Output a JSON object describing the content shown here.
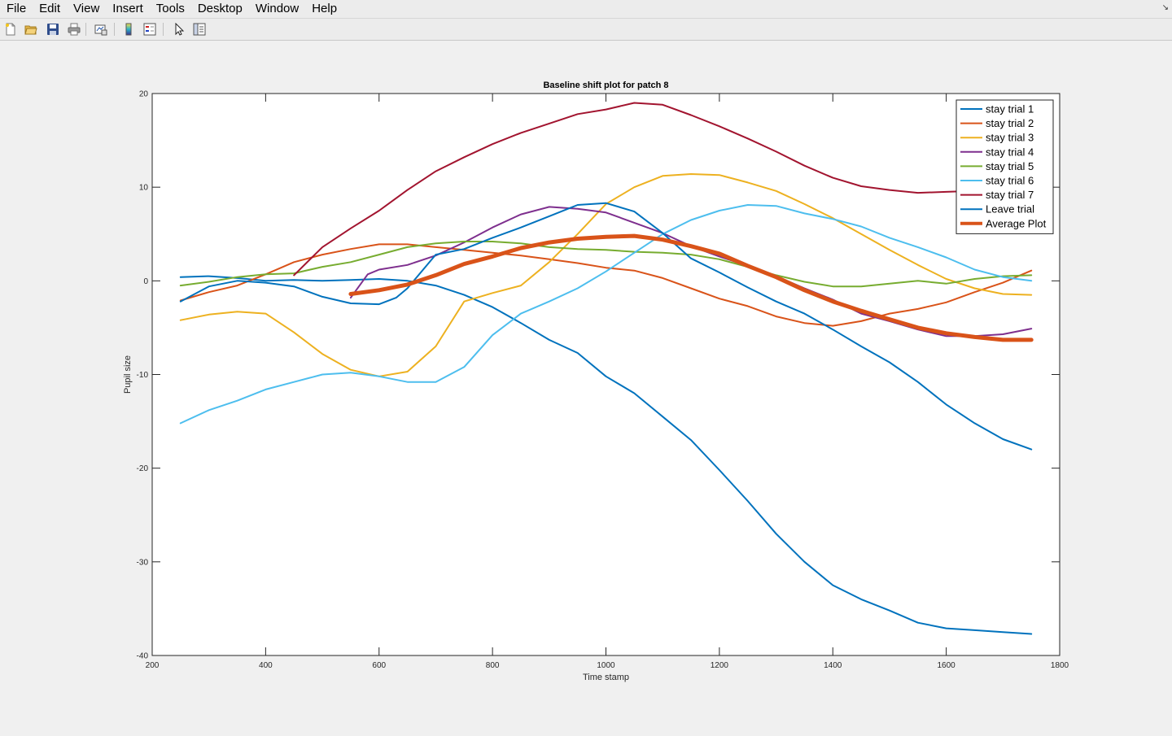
{
  "menu": [
    "File",
    "Edit",
    "View",
    "Insert",
    "Tools",
    "Desktop",
    "Window",
    "Help"
  ],
  "toolbar": {
    "icons": [
      "new-figure-icon",
      "open-file-icon",
      "save-icon",
      "print-icon",
      "link-plot-icon",
      "insert-colorbar-icon",
      "insert-legend-icon",
      "edit-plot-icon",
      "property-inspector-icon"
    ]
  },
  "chart_data": {
    "type": "line",
    "title": "Baseline shift plot for patch 8",
    "xlabel": "Time stamp",
    "ylabel": "Pupil size",
    "xlim": [
      200,
      1800
    ],
    "ylim": [
      -40,
      20
    ],
    "xticks": [
      200,
      400,
      600,
      800,
      1000,
      1200,
      1400,
      1600,
      1800
    ],
    "yticks": [
      -40,
      -30,
      -20,
      -10,
      0,
      10,
      20
    ],
    "grid": false,
    "legend_position": "top-right",
    "series": [
      {
        "name": "stay trial 1",
        "color": "#0072BD",
        "width": 2,
        "x": [
          250,
          300,
          350,
          400,
          450,
          500,
          550,
          600,
          650,
          700,
          750,
          800,
          850,
          900,
          950,
          1000,
          1050,
          1100,
          1150,
          1200,
          1250,
          1300,
          1350,
          1400,
          1450,
          1500,
          1550,
          1600,
          1650,
          1700,
          1750
        ],
        "y": [
          0.4,
          0.5,
          0.3,
          0.0,
          0.1,
          0.0,
          0.1,
          0.2,
          0.0,
          -0.5,
          -1.5,
          -2.8,
          -4.5,
          -6.3,
          -7.7,
          -10.2,
          -12.0,
          -14.5,
          -17.0,
          -20.2,
          -23.5,
          -27.0,
          -30.0,
          -32.5,
          -34.0,
          -35.2,
          -36.5,
          -37.1,
          -37.3,
          -37.5,
          -37.7
        ]
      },
      {
        "name": "stay trial 2",
        "color": "#D95319",
        "width": 2,
        "x": [
          250,
          300,
          350,
          400,
          450,
          500,
          550,
          600,
          650,
          700,
          750,
          800,
          850,
          900,
          950,
          1000,
          1050,
          1100,
          1150,
          1200,
          1250,
          1300,
          1350,
          1400,
          1450,
          1500,
          1550,
          1600,
          1650,
          1700,
          1750
        ],
        "y": [
          -2.1,
          -1.2,
          -0.5,
          0.7,
          2.0,
          2.8,
          3.4,
          3.9,
          3.9,
          3.6,
          3.3,
          3.0,
          2.7,
          2.3,
          1.9,
          1.4,
          1.1,
          0.3,
          -0.8,
          -1.9,
          -2.7,
          -3.8,
          -4.5,
          -4.8,
          -4.3,
          -3.5,
          -3.0,
          -2.3,
          -1.2,
          -0.2,
          1.1
        ]
      },
      {
        "name": "stay trial 3",
        "color": "#EDB120",
        "width": 2,
        "x": [
          250,
          300,
          350,
          400,
          450,
          500,
          550,
          600,
          650,
          700,
          750,
          800,
          850,
          900,
          950,
          1000,
          1050,
          1100,
          1150,
          1200,
          1250,
          1300,
          1350,
          1400,
          1450,
          1500,
          1550,
          1600,
          1650,
          1700,
          1750
        ],
        "y": [
          -4.2,
          -3.6,
          -3.3,
          -3.5,
          -5.5,
          -7.8,
          -9.5,
          -10.2,
          -9.7,
          -7.0,
          -2.2,
          -1.3,
          -0.5,
          2.0,
          5.0,
          8.2,
          10.0,
          11.2,
          11.4,
          11.3,
          10.5,
          9.6,
          8.2,
          6.7,
          5.0,
          3.3,
          1.7,
          0.2,
          -0.8,
          -1.4,
          -1.5
        ]
      },
      {
        "name": "stay trial 4",
        "color": "#7E2F8E",
        "width": 2,
        "x": [
          550,
          580,
          600,
          650,
          700,
          750,
          800,
          850,
          900,
          950,
          1000,
          1050,
          1100,
          1150,
          1200,
          1250,
          1300,
          1350,
          1400,
          1450,
          1500,
          1550,
          1600,
          1650,
          1700,
          1750
        ],
        "y": [
          -1.8,
          0.7,
          1.2,
          1.7,
          2.7,
          4.1,
          5.7,
          7.1,
          7.9,
          7.7,
          7.3,
          6.2,
          5.1,
          3.7,
          2.6,
          1.6,
          0.5,
          -0.8,
          -2.0,
          -3.5,
          -4.3,
          -5.2,
          -5.9,
          -5.9,
          -5.7,
          -5.1
        ]
      },
      {
        "name": "stay trial 5",
        "color": "#77AC30",
        "width": 2,
        "x": [
          250,
          300,
          350,
          400,
          450,
          500,
          550,
          600,
          650,
          700,
          750,
          800,
          850,
          900,
          950,
          1000,
          1050,
          1100,
          1150,
          1200,
          1250,
          1300,
          1350,
          1400,
          1450,
          1500,
          1550,
          1600,
          1650,
          1700,
          1750
        ],
        "y": [
          -0.5,
          -0.1,
          0.4,
          0.7,
          0.8,
          1.5,
          2.0,
          2.8,
          3.6,
          4.0,
          4.2,
          4.2,
          4.0,
          3.6,
          3.4,
          3.3,
          3.1,
          3.0,
          2.8,
          2.3,
          1.5,
          0.6,
          -0.1,
          -0.6,
          -0.6,
          -0.3,
          0.0,
          -0.3,
          0.2,
          0.5,
          0.6
        ]
      },
      {
        "name": "stay trial 6",
        "color": "#4DBEEE",
        "width": 2,
        "x": [
          250,
          300,
          350,
          400,
          450,
          500,
          550,
          600,
          650,
          700,
          750,
          800,
          850,
          900,
          950,
          1000,
          1050,
          1100,
          1150,
          1200,
          1250,
          1300,
          1350,
          1400,
          1450,
          1500,
          1550,
          1600,
          1650,
          1700,
          1750
        ],
        "y": [
          -15.2,
          -13.8,
          -12.8,
          -11.6,
          -10.8,
          -10.0,
          -9.8,
          -10.2,
          -10.8,
          -10.8,
          -9.2,
          -5.8,
          -3.5,
          -2.2,
          -0.8,
          1.0,
          3.0,
          5.0,
          6.5,
          7.5,
          8.1,
          8.0,
          7.2,
          6.6,
          5.8,
          4.6,
          3.6,
          2.5,
          1.2,
          0.4,
          0.0
        ]
      },
      {
        "name": "stay trial 7",
        "color": "#A2142F",
        "width": 2,
        "x": [
          450,
          500,
          550,
          600,
          650,
          700,
          750,
          800,
          850,
          900,
          950,
          1000,
          1050,
          1100,
          1150,
          1200,
          1250,
          1300,
          1350,
          1400,
          1450,
          1500,
          1550,
          1600,
          1650,
          1700
        ],
        "y": [
          0.6,
          3.6,
          5.6,
          7.5,
          9.7,
          11.7,
          13.2,
          14.6,
          15.8,
          16.8,
          17.8,
          18.3,
          19.0,
          18.8,
          17.7,
          16.5,
          15.2,
          13.8,
          12.3,
          11.0,
          10.1,
          9.7,
          9.4,
          9.5,
          9.6,
          9.7
        ]
      },
      {
        "name": "Leave trial",
        "color": "#0072BD",
        "width": 2,
        "x": [
          250,
          300,
          350,
          400,
          450,
          500,
          550,
          600,
          630,
          650,
          700,
          750,
          800,
          850,
          900,
          950,
          1000,
          1050,
          1100,
          1150,
          1200,
          1250,
          1300,
          1350,
          1400,
          1450,
          1500,
          1550,
          1600,
          1650,
          1700,
          1750
        ],
        "y": [
          -2.2,
          -0.6,
          0.0,
          -0.2,
          -0.6,
          -1.7,
          -2.4,
          -2.5,
          -1.8,
          -0.8,
          2.8,
          3.4,
          4.6,
          5.7,
          6.9,
          8.1,
          8.3,
          7.4,
          5.1,
          2.4,
          0.9,
          -0.7,
          -2.2,
          -3.5,
          -5.2,
          -7.0,
          -8.7,
          -10.8,
          -13.2,
          -15.2,
          -16.9,
          -18.0
        ]
      },
      {
        "name": "Average Plot",
        "color": "#D95319",
        "width": 5,
        "x": [
          550,
          600,
          650,
          700,
          750,
          800,
          850,
          900,
          950,
          1000,
          1050,
          1100,
          1150,
          1200,
          1250,
          1300,
          1350,
          1400,
          1450,
          1500,
          1550,
          1600,
          1650,
          1700,
          1750
        ],
        "y": [
          -1.4,
          -1.0,
          -0.4,
          0.6,
          1.8,
          2.6,
          3.5,
          4.1,
          4.5,
          4.7,
          4.8,
          4.4,
          3.7,
          2.9,
          1.6,
          0.4,
          -1.0,
          -2.2,
          -3.2,
          -4.1,
          -5.0,
          -5.6,
          -6.0,
          -6.3,
          -6.3
        ]
      }
    ]
  }
}
